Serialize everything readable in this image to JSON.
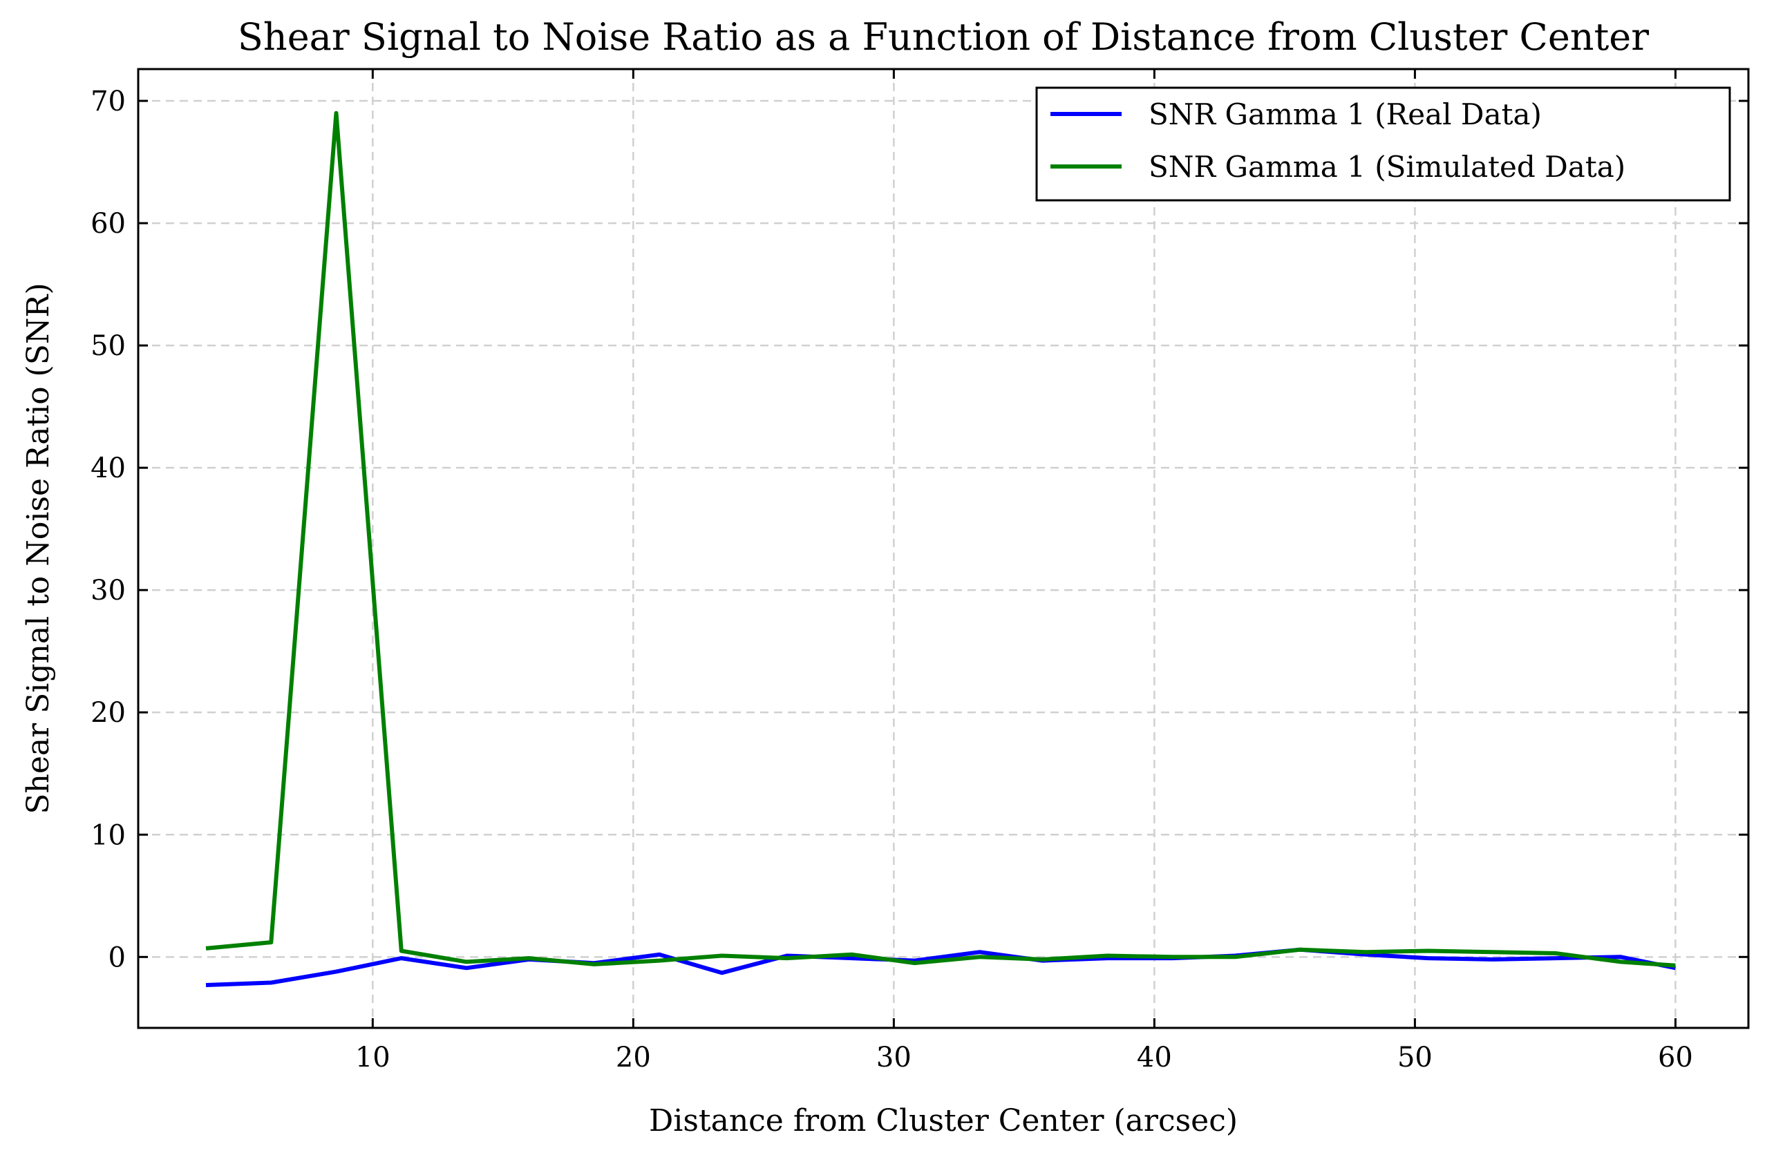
{
  "chart_data": {
    "type": "line",
    "title": "Shear Signal to Noise Ratio as a Function of Distance from Cluster Center",
    "xlabel": "Distance from Cluster Center (arcsec)",
    "ylabel": "Shear Signal to Noise Ratio (SNR)",
    "xlim": [
      1.0,
      62.8
    ],
    "ylim": [
      -5.8,
      72.6
    ],
    "xticks": [
      10,
      20,
      30,
      40,
      50,
      60
    ],
    "yticks": [
      0,
      10,
      20,
      30,
      40,
      50,
      60,
      70
    ],
    "grid": true,
    "legend_position": "top-right",
    "x": [
      3.6,
      6.1,
      8.6,
      11.1,
      13.6,
      16.0,
      18.5,
      21.0,
      23.4,
      25.9,
      28.4,
      30.8,
      33.3,
      35.7,
      38.2,
      40.7,
      43.1,
      45.6,
      48.1,
      50.5,
      53.0,
      55.4,
      57.9,
      60.0
    ],
    "series": [
      {
        "name": "SNR Gamma 1 (Real Data)",
        "color": "#0000ff",
        "values": [
          -2.3,
          -2.1,
          -1.2,
          -0.1,
          -0.9,
          -0.2,
          -0.5,
          0.2,
          -1.3,
          0.1,
          -0.1,
          -0.3,
          0.4,
          -0.3,
          -0.1,
          -0.1,
          0.1,
          0.6,
          0.2,
          -0.1,
          -0.2,
          -0.1,
          0.0,
          -0.9
        ]
      },
      {
        "name": "SNR Gamma 1 (Simulated Data)",
        "color": "#008000",
        "values": [
          0.7,
          1.2,
          69.0,
          0.5,
          -0.4,
          -0.1,
          -0.6,
          -0.3,
          0.1,
          -0.1,
          0.2,
          -0.5,
          0.0,
          -0.2,
          0.1,
          0.0,
          0.0,
          0.6,
          0.4,
          0.5,
          0.4,
          0.3,
          -0.4,
          -0.7
        ]
      }
    ]
  }
}
